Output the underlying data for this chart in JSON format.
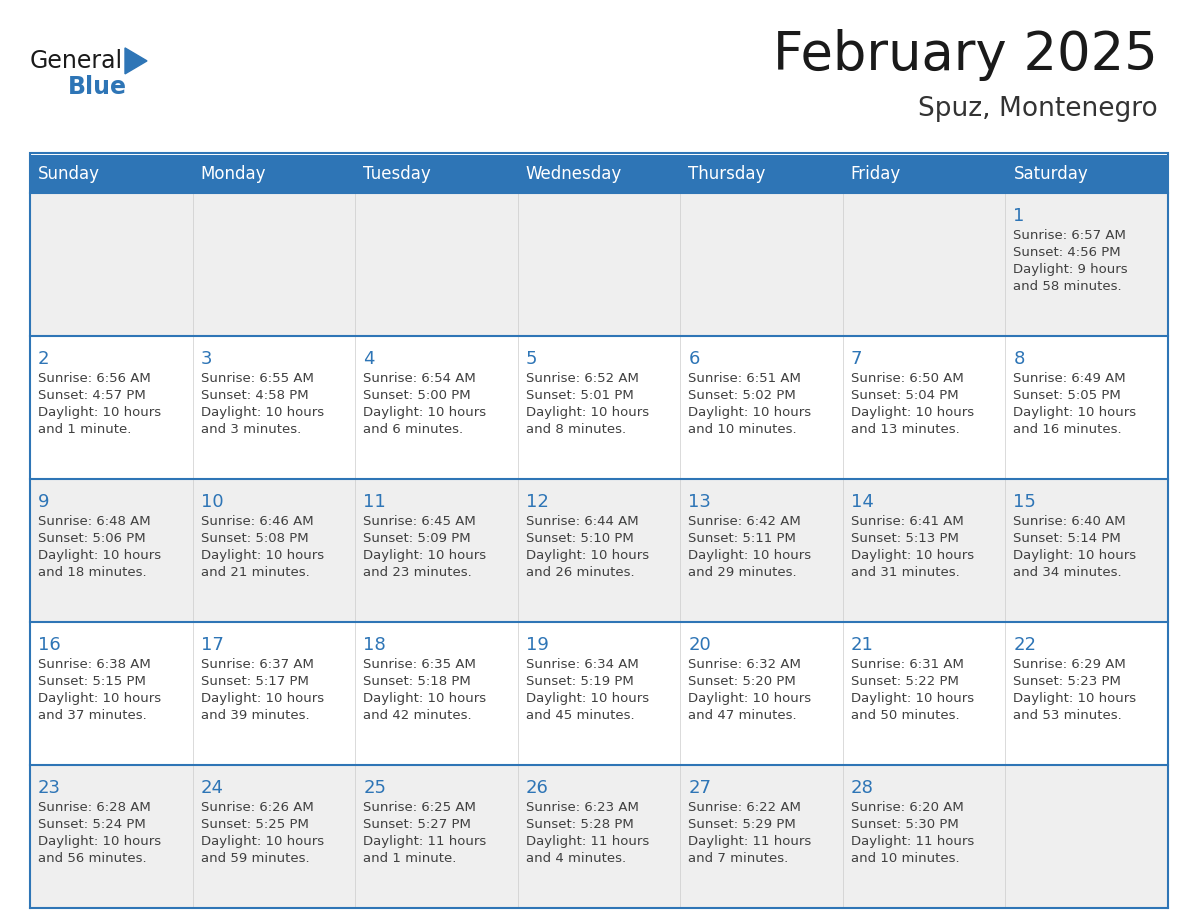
{
  "title": "February 2025",
  "subtitle": "Spuz, Montenegro",
  "days_of_week": [
    "Sunday",
    "Monday",
    "Tuesday",
    "Wednesday",
    "Thursday",
    "Friday",
    "Saturday"
  ],
  "header_bg": "#2E75B6",
  "header_text": "#FFFFFF",
  "cell_bg_odd": "#EFEFEF",
  "cell_bg_even": "#FFFFFF",
  "border_color": "#2E75B6",
  "day_num_color": "#2E75B6",
  "info_color": "#404040",
  "title_color": "#1a1a1a",
  "subtitle_color": "#333333",
  "logo_general_color": "#1a1a1a",
  "logo_blue_color": "#2E75B6",
  "weeks": [
    [
      null,
      null,
      null,
      null,
      null,
      null,
      1
    ],
    [
      2,
      3,
      4,
      5,
      6,
      7,
      8
    ],
    [
      9,
      10,
      11,
      12,
      13,
      14,
      15
    ],
    [
      16,
      17,
      18,
      19,
      20,
      21,
      22
    ],
    [
      23,
      24,
      25,
      26,
      27,
      28,
      null
    ]
  ],
  "cell_data": {
    "1": {
      "sunrise": "6:57 AM",
      "sunset": "4:56 PM",
      "daylight_l1": "Daylight: 9 hours",
      "daylight_l2": "and 58 minutes."
    },
    "2": {
      "sunrise": "6:56 AM",
      "sunset": "4:57 PM",
      "daylight_l1": "Daylight: 10 hours",
      "daylight_l2": "and 1 minute."
    },
    "3": {
      "sunrise": "6:55 AM",
      "sunset": "4:58 PM",
      "daylight_l1": "Daylight: 10 hours",
      "daylight_l2": "and 3 minutes."
    },
    "4": {
      "sunrise": "6:54 AM",
      "sunset": "5:00 PM",
      "daylight_l1": "Daylight: 10 hours",
      "daylight_l2": "and 6 minutes."
    },
    "5": {
      "sunrise": "6:52 AM",
      "sunset": "5:01 PM",
      "daylight_l1": "Daylight: 10 hours",
      "daylight_l2": "and 8 minutes."
    },
    "6": {
      "sunrise": "6:51 AM",
      "sunset": "5:02 PM",
      "daylight_l1": "Daylight: 10 hours",
      "daylight_l2": "and 10 minutes."
    },
    "7": {
      "sunrise": "6:50 AM",
      "sunset": "5:04 PM",
      "daylight_l1": "Daylight: 10 hours",
      "daylight_l2": "and 13 minutes."
    },
    "8": {
      "sunrise": "6:49 AM",
      "sunset": "5:05 PM",
      "daylight_l1": "Daylight: 10 hours",
      "daylight_l2": "and 16 minutes."
    },
    "9": {
      "sunrise": "6:48 AM",
      "sunset": "5:06 PM",
      "daylight_l1": "Daylight: 10 hours",
      "daylight_l2": "and 18 minutes."
    },
    "10": {
      "sunrise": "6:46 AM",
      "sunset": "5:08 PM",
      "daylight_l1": "Daylight: 10 hours",
      "daylight_l2": "and 21 minutes."
    },
    "11": {
      "sunrise": "6:45 AM",
      "sunset": "5:09 PM",
      "daylight_l1": "Daylight: 10 hours",
      "daylight_l2": "and 23 minutes."
    },
    "12": {
      "sunrise": "6:44 AM",
      "sunset": "5:10 PM",
      "daylight_l1": "Daylight: 10 hours",
      "daylight_l2": "and 26 minutes."
    },
    "13": {
      "sunrise": "6:42 AM",
      "sunset": "5:11 PM",
      "daylight_l1": "Daylight: 10 hours",
      "daylight_l2": "and 29 minutes."
    },
    "14": {
      "sunrise": "6:41 AM",
      "sunset": "5:13 PM",
      "daylight_l1": "Daylight: 10 hours",
      "daylight_l2": "and 31 minutes."
    },
    "15": {
      "sunrise": "6:40 AM",
      "sunset": "5:14 PM",
      "daylight_l1": "Daylight: 10 hours",
      "daylight_l2": "and 34 minutes."
    },
    "16": {
      "sunrise": "6:38 AM",
      "sunset": "5:15 PM",
      "daylight_l1": "Daylight: 10 hours",
      "daylight_l2": "and 37 minutes."
    },
    "17": {
      "sunrise": "6:37 AM",
      "sunset": "5:17 PM",
      "daylight_l1": "Daylight: 10 hours",
      "daylight_l2": "and 39 minutes."
    },
    "18": {
      "sunrise": "6:35 AM",
      "sunset": "5:18 PM",
      "daylight_l1": "Daylight: 10 hours",
      "daylight_l2": "and 42 minutes."
    },
    "19": {
      "sunrise": "6:34 AM",
      "sunset": "5:19 PM",
      "daylight_l1": "Daylight: 10 hours",
      "daylight_l2": "and 45 minutes."
    },
    "20": {
      "sunrise": "6:32 AM",
      "sunset": "5:20 PM",
      "daylight_l1": "Daylight: 10 hours",
      "daylight_l2": "and 47 minutes."
    },
    "21": {
      "sunrise": "6:31 AM",
      "sunset": "5:22 PM",
      "daylight_l1": "Daylight: 10 hours",
      "daylight_l2": "and 50 minutes."
    },
    "22": {
      "sunrise": "6:29 AM",
      "sunset": "5:23 PM",
      "daylight_l1": "Daylight: 10 hours",
      "daylight_l2": "and 53 minutes."
    },
    "23": {
      "sunrise": "6:28 AM",
      "sunset": "5:24 PM",
      "daylight_l1": "Daylight: 10 hours",
      "daylight_l2": "and 56 minutes."
    },
    "24": {
      "sunrise": "6:26 AM",
      "sunset": "5:25 PM",
      "daylight_l1": "Daylight: 10 hours",
      "daylight_l2": "and 59 minutes."
    },
    "25": {
      "sunrise": "6:25 AM",
      "sunset": "5:27 PM",
      "daylight_l1": "Daylight: 11 hours",
      "daylight_l2": "and 1 minute."
    },
    "26": {
      "sunrise": "6:23 AM",
      "sunset": "5:28 PM",
      "daylight_l1": "Daylight: 11 hours",
      "daylight_l2": "and 4 minutes."
    },
    "27": {
      "sunrise": "6:22 AM",
      "sunset": "5:29 PM",
      "daylight_l1": "Daylight: 11 hours",
      "daylight_l2": "and 7 minutes."
    },
    "28": {
      "sunrise": "6:20 AM",
      "sunset": "5:30 PM",
      "daylight_l1": "Daylight: 11 hours",
      "daylight_l2": "and 10 minutes."
    }
  }
}
